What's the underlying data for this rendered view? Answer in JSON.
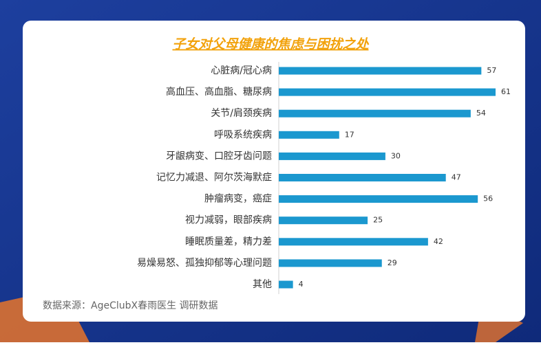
{
  "chart_data": {
    "type": "bar",
    "orientation": "horizontal",
    "title": "子女对父母健康的焦虑与困扰之处",
    "categories": [
      "心脏病/冠心病",
      "高血压、高血脂、糖尿病",
      "关节/肩颈疾病",
      "呼吸系统疾病",
      "牙龈病变、口腔牙齿问题",
      "记忆力减退、阿尔茨海默症",
      "肿瘤病变，癌症",
      "视力减弱，眼部疾病",
      "睡眠质量差，精力差",
      "易燥易怒、孤独抑郁等心理问题",
      "其他"
    ],
    "values": [
      57,
      61,
      54,
      17,
      30,
      47,
      56,
      25,
      42,
      29,
      4
    ],
    "color": "#1b98cf",
    "source": "数据来源：AgeClubX春雨医生 调研数据"
  }
}
